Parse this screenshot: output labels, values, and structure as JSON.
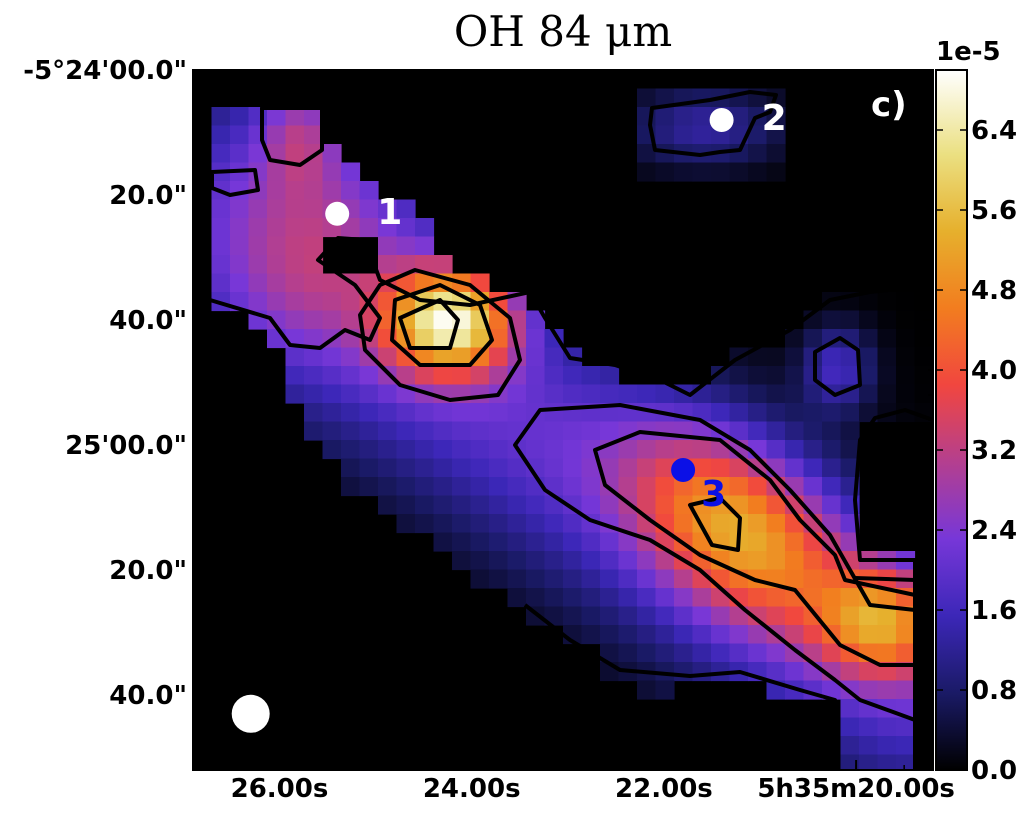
{
  "chart_data": {
    "type": "heatmap",
    "title": "OH 84 μm",
    "panel_label": "c)",
    "x_axis": {
      "ticks": [
        "26.00s",
        "24.00s",
        "22.00s",
        "5h35m20.00s"
      ],
      "tick_values_sec": [
        26.0,
        24.0,
        22.0,
        20.0
      ],
      "range_sec": [
        26.9,
        19.2
      ]
    },
    "y_axis": {
      "ticks": [
        "-5°24'00.0\"",
        "20.0\"",
        "40.0\"",
        "25'00.0\"",
        "20.0\"",
        "40.0\""
      ],
      "tick_values_arcsec": [
        0,
        20,
        40,
        60,
        80,
        100
      ],
      "range_arcsec": [
        0,
        112
      ]
    },
    "colorbar": {
      "exponent_label": "1e-5",
      "ticks": [
        "0.0",
        "0.8",
        "1.6",
        "2.4",
        "3.2",
        "4.0",
        "4.8",
        "5.6",
        "6.4"
      ],
      "range": [
        0.0,
        7.0
      ],
      "colormap": "CMRmap"
    },
    "sources": [
      {
        "label": "1",
        "color": "#ffffff",
        "ra_sec": 25.4,
        "dec_arcsec": 23
      },
      {
        "label": "2",
        "color": "#ffffff",
        "ra_sec": 21.4,
        "dec_arcsec": 8
      },
      {
        "label": "3",
        "color": "#0b10e6",
        "ra_sec": 21.8,
        "dec_arcsec": 64
      }
    ],
    "beam": {
      "ra_sec": 26.3,
      "dec_arcsec": 103
    },
    "peaks": [
      {
        "ra_sec": 24.2,
        "dec_arcsec": 40,
        "value": 7.0
      },
      {
        "ra_sec": 21.2,
        "dec_arcsec": 73,
        "value": 5.5
      },
      {
        "ra_sec": 19.7,
        "dec_arcsec": 88,
        "value": 5.2
      }
    ]
  }
}
